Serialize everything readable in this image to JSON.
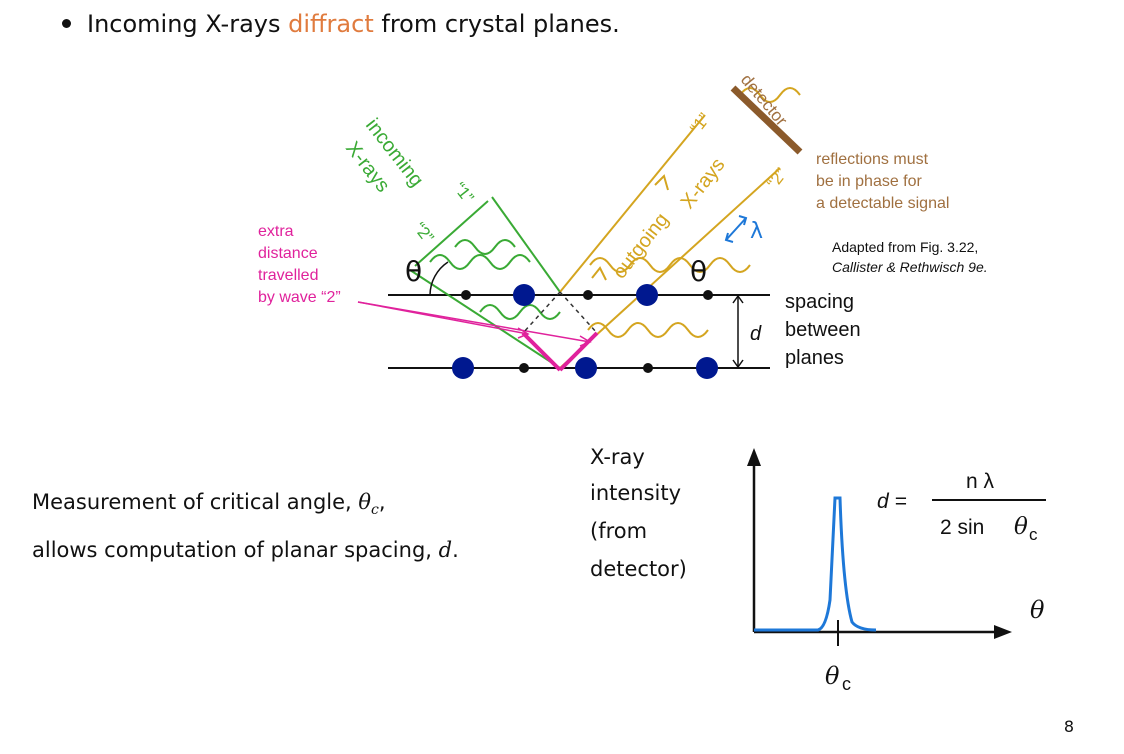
{
  "header": {
    "bullet_prefix": "Incoming X-rays ",
    "bullet_highlight": "diffract",
    "bullet_suffix": " from crystal planes.",
    "highlight_color": "#e07b3e"
  },
  "diagram": {
    "incoming_label": "incoming",
    "incoming_label2": "X-rays",
    "ray1_in": "“1”",
    "ray2_in": "“2”",
    "outgoing_label": "outgoing",
    "outgoing_label2": "X-rays",
    "ray1_out": "“1”",
    "ray2_out": "“2”",
    "detector_label": "detector",
    "reflections_note": [
      "reflections must",
      "be in phase for",
      "a detectable signal"
    ],
    "extra_note": [
      "extra",
      "distance",
      "travelled",
      "by wave “2”"
    ],
    "adapted_line1": "Adapted from Fig. 3.22,",
    "adapted_line2": "Callister & Rethwisch 9e.",
    "theta": "θ",
    "lambda": "λ",
    "d": "d",
    "spacing_label": [
      "spacing",
      "between",
      "planes"
    ],
    "colors": {
      "incoming": "#3aaa35",
      "outgoing": "#d4a520",
      "detector": "#8b5a2b",
      "extra": "#e0229c",
      "atom": "#00188f",
      "lambda": "#1e78d8",
      "detector_text": "#a07040"
    }
  },
  "measurement": {
    "line1_prefix": "Measurement of critical angle, ",
    "line1_theta": "θ",
    "line1_sub": "c",
    "line1_suffix": ",",
    "line2_prefix": "allows computation of planar spacing, ",
    "line2_d": "d",
    "line2_suffix": "."
  },
  "plot": {
    "ylabel": [
      "X-ray",
      "intensity",
      "(from",
      "detector)"
    ],
    "xlabel": "θ",
    "peak_label": "θ",
    "peak_sub": "c",
    "curve_color": "#1e78d8"
  },
  "formula": {
    "lhs": "d =",
    "numerator": "n λ",
    "denominator": "2 sin",
    "denom_theta": "θ",
    "denom_sub": "c"
  },
  "page_number": "8"
}
